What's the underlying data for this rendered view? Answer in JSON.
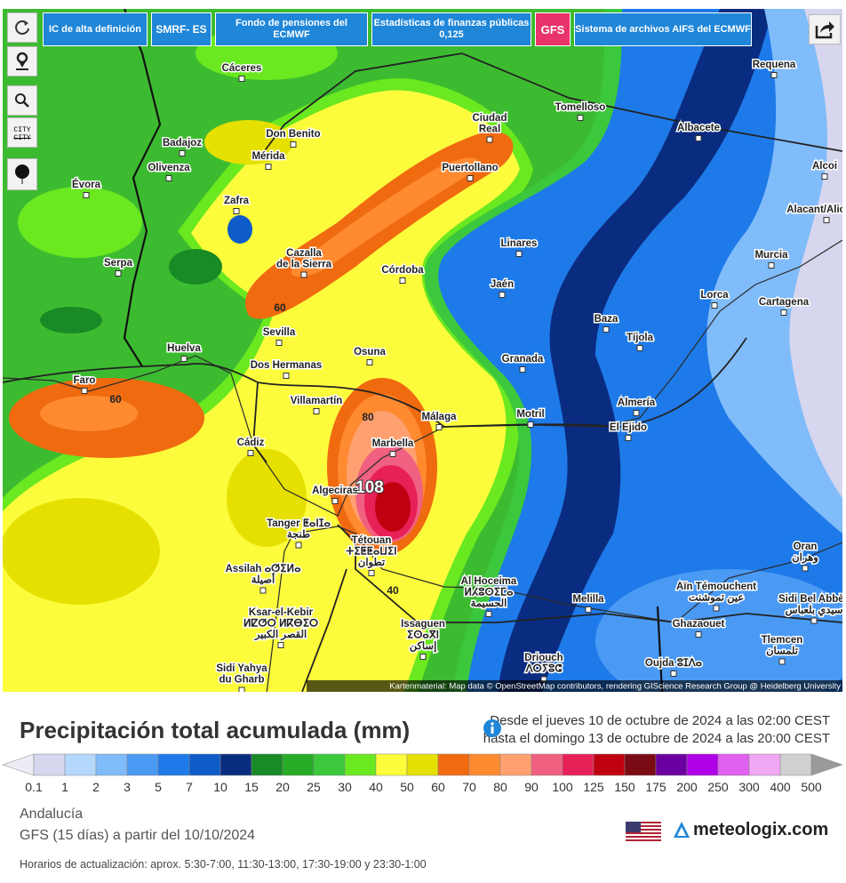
{
  "toolbar": {
    "buttons": [
      "IC de alta definición",
      "SMRF- ES",
      "Fondo de pensiones del ECMWF",
      [
        "Estadísticas de finanzas públicas",
        "0,125"
      ],
      "GFS",
      "Sistema de archivos AIFS del ECMWF"
    ],
    "city_toggle": "CITY"
  },
  "map": {
    "cities": [
      [
        "Cáceres"
      ],
      [
        "Badajoz"
      ],
      [
        "Don Benito"
      ],
      [
        "Mérida"
      ],
      [
        "Olivenza"
      ],
      [
        "Évora"
      ],
      [
        "Zafra"
      ],
      [
        "Serpa"
      ],
      [
        "Cazalla",
        "de la Sierra"
      ],
      [
        "Ciudad",
        "Real"
      ],
      [
        "Puertollano"
      ],
      [
        "Tomelloso"
      ],
      [
        "Albacete"
      ],
      [
        "Requena"
      ],
      [
        "Alcoi"
      ],
      [
        "Alacant/Alicante"
      ],
      [
        "Córdoba"
      ],
      [
        "Linares"
      ],
      [
        "Jaén"
      ],
      [
        "Murcia"
      ],
      [
        "Lorca"
      ],
      [
        "Cartagena"
      ],
      [
        "Baza"
      ],
      [
        "Tíjola"
      ],
      [
        "Sevilla"
      ],
      [
        "Huelva"
      ],
      [
        "Osuna"
      ],
      [
        "Dos Hermanas"
      ],
      [
        "Granada"
      ],
      [
        "Faro"
      ],
      [
        "Villamartín"
      ],
      [
        "Almería"
      ],
      [
        "Málaga"
      ],
      [
        "Motril"
      ],
      [
        "El Ejido"
      ],
      [
        "Cádiz"
      ],
      [
        "Marbella"
      ],
      [
        "Algeciras"
      ],
      [
        "Tanger ⵟⴰⵏⵊⴰ",
        "طنجة"
      ],
      [
        "Tétouan",
        "ⵜⵉⵟⵟⴰⵡⵉⵏ",
        "تطوان"
      ],
      [
        "Assilah ⴰⵚⵉⵍⴰ",
        "أصيلة"
      ],
      [
        "Al Hoceima",
        "ⵍⵃⵓⵙⵉⵎⴰ",
        "الحسيمة"
      ],
      [
        "Melilla"
      ],
      [
        "Aïn Témouchent",
        "عين تموشنت"
      ],
      [
        "Oran",
        "وهران"
      ],
      [
        "Sidi Bel Abbès",
        "سيدي بلعباس"
      ],
      [
        "Ksar-el-Kebir",
        "ⵍⵇⵚⵔ ⵍⴽⴱⵉⵔ",
        "القصر الكبير"
      ],
      [
        "Issaguen",
        "ⵉⵙⴰⴳⵏ",
        "إساكن"
      ],
      [
        "Ghazaouet"
      ],
      [
        "Tlemcen",
        "تلمسان"
      ],
      [
        "Driouch",
        "ⴷⵔⵢⵓⵛ"
      ],
      [
        "Oujda ⵓⵊⴷⴰ"
      ],
      [
        "Sidi Yahya",
        "du Gharb"
      ]
    ],
    "contour_labels": [
      60,
      60,
      80,
      108,
      40
    ],
    "attribution": "Kartenmaterial: Map data © OpenStreetMap contributors, rendering GIScience Research Group @ Heidelberg University"
  },
  "legend": {
    "title": "Precipitación total acumulada (mm)",
    "date_from": "Desde el jueves 10 de octubre de 2024 a  las 02:00  CEST",
    "date_to": "hasta el domingo 13 de octubre de 2024 a  las 20:00  CEST",
    "scale_labels": [
      0.1,
      1,
      2,
      3,
      5,
      7,
      10,
      15,
      20,
      25,
      30,
      40,
      50,
      60,
      70,
      80,
      90,
      100,
      125,
      150,
      175,
      200,
      250,
      300,
      400,
      500
    ],
    "colors": [
      "#d6d6ee",
      "#b4d8fc",
      "#80bcfa",
      "#4a9af4",
      "#1e7ae8",
      "#0e5cc8",
      "#0a2c80",
      "#188a26",
      "#26ac26",
      "#3cc83c",
      "#6ae820",
      "#fcfc3c",
      "#e6e000",
      "#f06a10",
      "#ff8a30",
      "#ffa070",
      "#f06080",
      "#e82058",
      "#c00010",
      "#7a0a14",
      "#6a00a0",
      "#b000e8",
      "#e060f0",
      "#f0a8f4",
      "#d0d0d0"
    ],
    "below_color": "#ececf4",
    "above_color": "#9a9a9a"
  },
  "footer": {
    "region": "Andalucía",
    "model": "GFS (15 días) a partir del 10/10/2024",
    "brand": "meteologix.com",
    "update_times": "Horarios de actualización: aprox. 5:30-7:00, 11:30-13:00, 17:30-19:00 y 23:30-1:00"
  }
}
